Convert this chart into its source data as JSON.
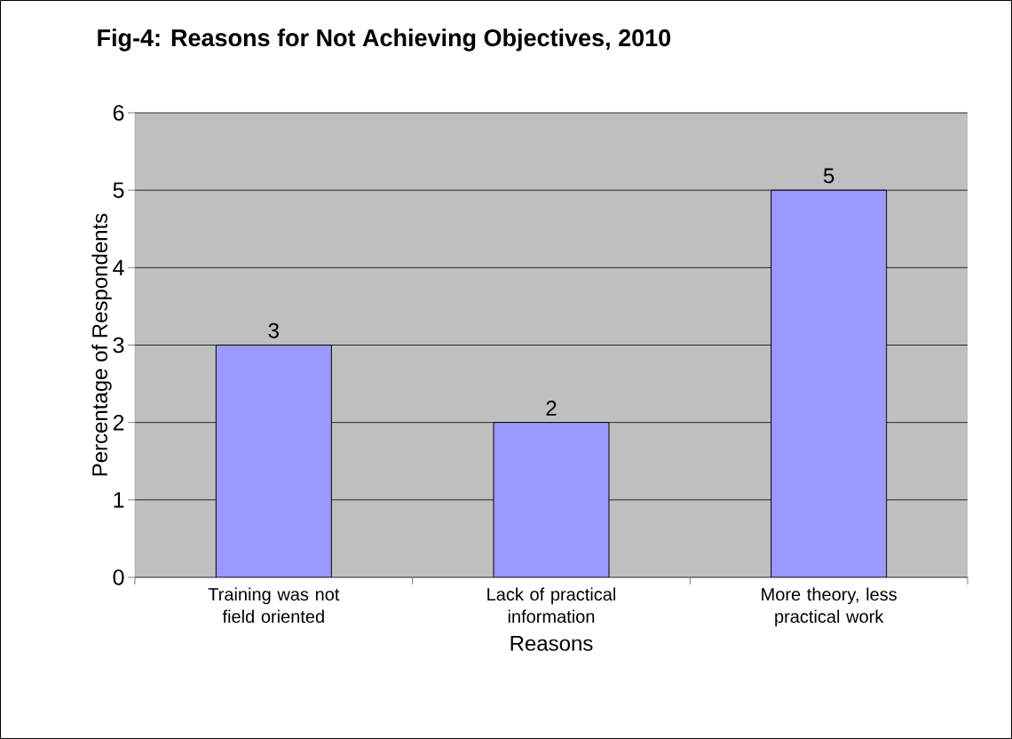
{
  "chart_data": {
    "type": "bar",
    "title": "Fig-4: Reasons for Not Achieving Objectives, 2010",
    "xlabel": "Reasons",
    "ylabel": "Percentage of Respondents",
    "categories": [
      "Training was not field oriented",
      "Lack of practical information",
      "More theory, less practical work"
    ],
    "values": [
      3,
      2,
      5
    ],
    "color": "#9999ff",
    "ylim": [
      0,
      6
    ],
    "yticks": [
      0,
      1,
      2,
      3,
      4,
      5,
      6
    ],
    "grid": "y",
    "data_labels": true
  }
}
